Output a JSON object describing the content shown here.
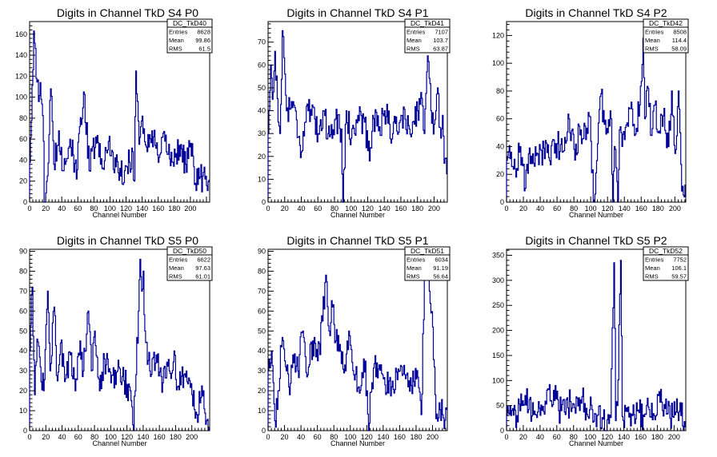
{
  "chart_data": [
    {
      "type": "histogram",
      "title": "Digits in Channel TkD S4 P0",
      "xlabel": "Channel Number",
      "ylabel": "",
      "xlim": [
        0,
        224
      ],
      "ylim": [
        0,
        172
      ],
      "xticks": [
        0,
        20,
        40,
        60,
        80,
        100,
        120,
        140,
        160,
        180,
        200
      ],
      "yticks": [
        0,
        20,
        40,
        60,
        80,
        100,
        120,
        140,
        160
      ],
      "stats": {
        "name": "DC_TkD40",
        "entries": "8628",
        "mean": "99.86",
        "rms": "61.5"
      },
      "series_color": "#000099",
      "keypoints": [
        [
          0,
          38
        ],
        [
          5,
          163
        ],
        [
          8,
          118
        ],
        [
          14,
          98
        ],
        [
          17,
          58
        ],
        [
          18,
          0
        ],
        [
          22,
          25
        ],
        [
          26,
          108
        ],
        [
          30,
          36
        ],
        [
          36,
          68
        ],
        [
          42,
          30
        ],
        [
          50,
          60
        ],
        [
          58,
          22
        ],
        [
          62,
          72
        ],
        [
          67,
          105
        ],
        [
          74,
          30
        ],
        [
          82,
          62
        ],
        [
          90,
          32
        ],
        [
          98,
          58
        ],
        [
          110,
          28
        ],
        [
          118,
          30
        ],
        [
          124,
          38
        ],
        [
          128,
          48
        ],
        [
          130,
          20
        ],
        [
          132,
          125
        ],
        [
          134,
          96
        ],
        [
          136,
          55
        ],
        [
          140,
          82
        ],
        [
          146,
          48
        ],
        [
          152,
          68
        ],
        [
          160,
          38
        ],
        [
          168,
          58
        ],
        [
          178,
          38
        ],
        [
          186,
          54
        ],
        [
          194,
          36
        ],
        [
          200,
          56
        ],
        [
          206,
          18
        ],
        [
          212,
          24
        ],
        [
          218,
          22
        ]
      ]
    },
    {
      "type": "histogram",
      "title": "Digits in Channel TkD S4 P1",
      "xlabel": "Channel Number",
      "ylabel": "",
      "xlim": [
        0,
        216
      ],
      "ylim": [
        0,
        79
      ],
      "xticks": [
        0,
        20,
        40,
        60,
        80,
        100,
        120,
        140,
        160,
        180,
        200
      ],
      "yticks": [
        0,
        10,
        20,
        30,
        40,
        50,
        60,
        70
      ],
      "stats": {
        "name": "DC_TkD41",
        "entries": "7107",
        "mean": "103.7",
        "rms": "63.87"
      },
      "series_color": "#000099",
      "keypoints": [
        [
          0,
          30
        ],
        [
          3,
          60
        ],
        [
          5,
          45
        ],
        [
          8,
          66
        ],
        [
          12,
          35
        ],
        [
          14,
          30
        ],
        [
          17,
          75
        ],
        [
          22,
          40
        ],
        [
          28,
          44
        ],
        [
          34,
          36
        ],
        [
          40,
          22
        ],
        [
          46,
          42
        ],
        [
          52,
          38
        ],
        [
          60,
          30
        ],
        [
          66,
          40
        ],
        [
          72,
          30
        ],
        [
          80,
          36
        ],
        [
          88,
          32
        ],
        [
          90,
          0
        ],
        [
          94,
          40
        ],
        [
          100,
          28
        ],
        [
          108,
          38
        ],
        [
          116,
          35
        ],
        [
          122,
          18
        ],
        [
          126,
          38
        ],
        [
          134,
          33
        ],
        [
          140,
          40
        ],
        [
          150,
          30
        ],
        [
          160,
          38
        ],
        [
          170,
          32
        ],
        [
          180,
          40
        ],
        [
          184,
          48
        ],
        [
          188,
          30
        ],
        [
          192,
          64
        ],
        [
          196,
          40
        ],
        [
          200,
          34
        ],
        [
          204,
          50
        ],
        [
          208,
          28
        ],
        [
          210,
          38
        ],
        [
          212,
          17
        ]
      ]
    },
    {
      "type": "histogram",
      "title": "Digits in Channel TkD S4 P2",
      "xlabel": "Channel Number",
      "ylabel": "",
      "xlim": [
        0,
        213
      ],
      "ylim": [
        0,
        130
      ],
      "xticks": [
        0,
        20,
        40,
        60,
        80,
        100,
        120,
        140,
        160,
        180,
        200
      ],
      "yticks": [
        0,
        20,
        40,
        60,
        80,
        100,
        120
      ],
      "stats": {
        "name": "DC_TkD42",
        "entries": "8508",
        "mean": "114.4",
        "rms": "58.09"
      },
      "series_color": "#000099",
      "keypoints": [
        [
          0,
          30
        ],
        [
          5,
          36
        ],
        [
          10,
          24
        ],
        [
          16,
          40
        ],
        [
          22,
          10
        ],
        [
          26,
          35
        ],
        [
          32,
          28
        ],
        [
          40,
          38
        ],
        [
          50,
          32
        ],
        [
          60,
          42
        ],
        [
          66,
          36
        ],
        [
          74,
          60
        ],
        [
          80,
          38
        ],
        [
          88,
          52
        ],
        [
          94,
          45
        ],
        [
          98,
          62
        ],
        [
          104,
          0
        ],
        [
          108,
          42
        ],
        [
          112,
          78
        ],
        [
          116,
          56
        ],
        [
          120,
          50
        ],
        [
          124,
          60
        ],
        [
          126,
          0
        ],
        [
          128,
          40
        ],
        [
          132,
          0
        ],
        [
          134,
          52
        ],
        [
          140,
          45
        ],
        [
          148,
          72
        ],
        [
          152,
          48
        ],
        [
          158,
          70
        ],
        [
          162,
          118
        ],
        [
          164,
          60
        ],
        [
          168,
          82
        ],
        [
          172,
          48
        ],
        [
          176,
          70
        ],
        [
          180,
          50
        ],
        [
          186,
          62
        ],
        [
          192,
          40
        ],
        [
          196,
          80
        ],
        [
          200,
          35
        ],
        [
          204,
          80
        ],
        [
          206,
          50
        ],
        [
          208,
          8
        ],
        [
          210,
          5
        ]
      ]
    },
    {
      "type": "histogram",
      "title": "Digits in Channel TkD S5 P0",
      "xlabel": "Channel Number",
      "ylabel": "",
      "xlim": [
        0,
        222
      ],
      "ylim": [
        0,
        91
      ],
      "xticks": [
        0,
        20,
        40,
        60,
        80,
        100,
        120,
        140,
        160,
        180,
        200
      ],
      "yticks": [
        0,
        10,
        20,
        30,
        40,
        50,
        60,
        70,
        80,
        90
      ],
      "stats": {
        "name": "DC_TkD50",
        "entries": "6622",
        "mean": "97.63",
        "rms": "61.01"
      },
      "series_color": "#000099",
      "keypoints": [
        [
          0,
          40
        ],
        [
          3,
          72
        ],
        [
          6,
          18
        ],
        [
          9,
          46
        ],
        [
          13,
          32
        ],
        [
          17,
          20
        ],
        [
          22,
          70
        ],
        [
          25,
          30
        ],
        [
          30,
          62
        ],
        [
          34,
          25
        ],
        [
          38,
          44
        ],
        [
          44,
          26
        ],
        [
          50,
          38
        ],
        [
          56,
          20
        ],
        [
          62,
          45
        ],
        [
          66,
          30
        ],
        [
          72,
          60
        ],
        [
          76,
          30
        ],
        [
          80,
          50
        ],
        [
          86,
          20
        ],
        [
          92,
          36
        ],
        [
          100,
          24
        ],
        [
          108,
          30
        ],
        [
          116,
          25
        ],
        [
          124,
          20
        ],
        [
          128,
          0
        ],
        [
          130,
          20
        ],
        [
          134,
          60
        ],
        [
          136,
          86
        ],
        [
          138,
          70
        ],
        [
          140,
          80
        ],
        [
          142,
          50
        ],
        [
          148,
          30
        ],
        [
          156,
          38
        ],
        [
          164,
          24
        ],
        [
          172,
          30
        ],
        [
          178,
          40
        ],
        [
          182,
          22
        ],
        [
          190,
          28
        ],
        [
          200,
          18
        ],
        [
          206,
          8
        ],
        [
          210,
          14
        ],
        [
          214,
          20
        ],
        [
          218,
          5
        ]
      ]
    },
    {
      "type": "histogram",
      "title": "Digits in Channel TkD S5 P1",
      "xlabel": "Channel Number",
      "ylabel": "",
      "xlim": [
        0,
        218
      ],
      "ylim": [
        0,
        91
      ],
      "xticks": [
        0,
        20,
        40,
        60,
        80,
        100,
        120,
        140,
        160,
        180,
        200
      ],
      "yticks": [
        0,
        10,
        20,
        30,
        40,
        50,
        60,
        70,
        80,
        90
      ],
      "stats": {
        "name": "DC_TkD51",
        "entries": "6034",
        "mean": "91.19",
        "rms": "56.64"
      },
      "series_color": "#000099",
      "keypoints": [
        [
          0,
          30
        ],
        [
          4,
          40
        ],
        [
          8,
          5
        ],
        [
          12,
          20
        ],
        [
          16,
          42
        ],
        [
          22,
          30
        ],
        [
          26,
          18
        ],
        [
          30,
          38
        ],
        [
          36,
          30
        ],
        [
          42,
          50
        ],
        [
          48,
          28
        ],
        [
          54,
          45
        ],
        [
          60,
          35
        ],
        [
          66,
          55
        ],
        [
          70,
          78
        ],
        [
          74,
          50
        ],
        [
          78,
          62
        ],
        [
          82,
          45
        ],
        [
          88,
          40
        ],
        [
          94,
          30
        ],
        [
          98,
          50
        ],
        [
          104,
          28
        ],
        [
          110,
          22
        ],
        [
          116,
          36
        ],
        [
          120,
          20
        ],
        [
          122,
          0
        ],
        [
          126,
          24
        ],
        [
          132,
          34
        ],
        [
          140,
          26
        ],
        [
          150,
          22
        ],
        [
          160,
          30
        ],
        [
          170,
          22
        ],
        [
          180,
          26
        ],
        [
          186,
          8
        ],
        [
          190,
          78
        ],
        [
          194,
          88
        ],
        [
          196,
          70
        ],
        [
          200,
          52
        ],
        [
          204,
          6
        ],
        [
          208,
          14
        ],
        [
          212,
          8
        ]
      ]
    },
    {
      "type": "histogram",
      "title": "Digits in Channel TkD S5 P2",
      "xlabel": "Channel Number",
      "ylabel": "",
      "xlim": [
        0,
        214
      ],
      "ylim": [
        0,
        362
      ],
      "xticks": [
        0,
        20,
        40,
        60,
        80,
        100,
        120,
        140,
        160,
        180,
        200
      ],
      "yticks": [
        0,
        50,
        100,
        150,
        200,
        250,
        300,
        350
      ],
      "stats": {
        "name": "DC_TkD52",
        "entries": "7752",
        "mean": "106.1",
        "rms": "59.57"
      },
      "series_color": "#000099",
      "keypoints": [
        [
          0,
          30
        ],
        [
          6,
          40
        ],
        [
          12,
          30
        ],
        [
          18,
          50
        ],
        [
          22,
          70
        ],
        [
          26,
          42
        ],
        [
          32,
          32
        ],
        [
          38,
          58
        ],
        [
          44,
          38
        ],
        [
          50,
          82
        ],
        [
          54,
          48
        ],
        [
          58,
          90
        ],
        [
          62,
          40
        ],
        [
          66,
          52
        ],
        [
          70,
          32
        ],
        [
          76,
          58
        ],
        [
          82,
          35
        ],
        [
          90,
          68
        ],
        [
          96,
          32
        ],
        [
          102,
          42
        ],
        [
          108,
          30
        ],
        [
          114,
          26
        ],
        [
          118,
          0
        ],
        [
          120,
          22
        ],
        [
          124,
          26
        ],
        [
          128,
          335
        ],
        [
          130,
          20
        ],
        [
          132,
          50
        ],
        [
          136,
          340
        ],
        [
          138,
          28
        ],
        [
          144,
          38
        ],
        [
          150,
          30
        ],
        [
          158,
          36
        ],
        [
          164,
          28
        ],
        [
          170,
          42
        ],
        [
          176,
          30
        ],
        [
          182,
          78
        ],
        [
          186,
          40
        ],
        [
          192,
          34
        ],
        [
          198,
          28
        ],
        [
          204,
          36
        ],
        [
          208,
          30
        ],
        [
          212,
          18
        ]
      ]
    }
  ]
}
